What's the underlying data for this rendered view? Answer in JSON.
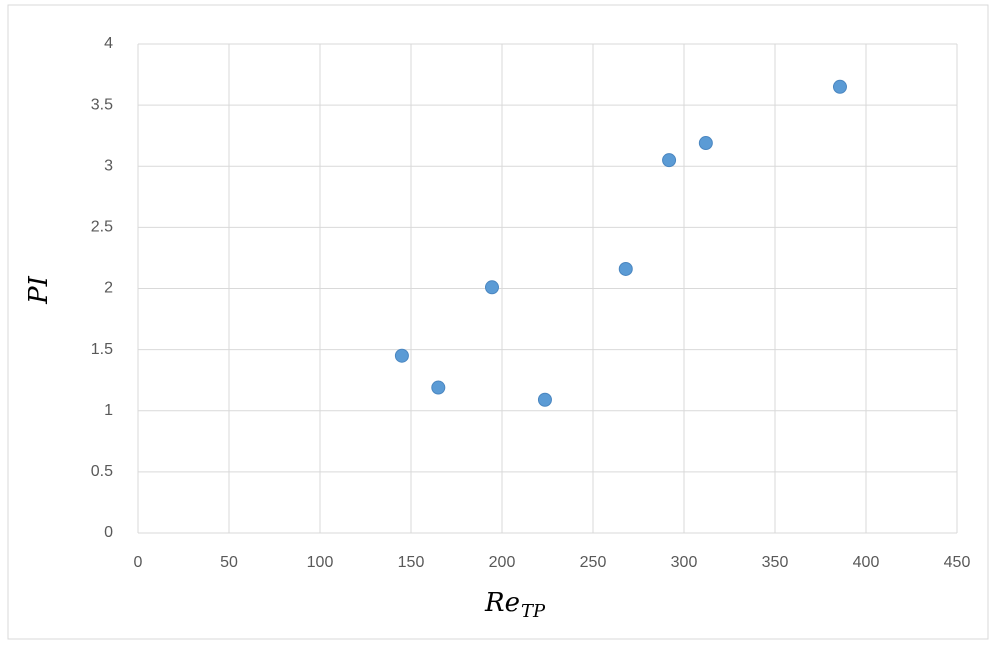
{
  "chart_data": {
    "type": "scatter",
    "x_label": "Re",
    "x_label_sub": "TP",
    "y_label": "PI",
    "x": [
      145,
      165,
      194.5,
      223.6,
      268,
      291.8,
      312,
      385.7
    ],
    "y": [
      1.45,
      1.19,
      2.01,
      1.09,
      2.16,
      3.05,
      3.19,
      3.65
    ],
    "color": "#5b9bd5",
    "xlim": [
      0,
      450
    ],
    "xticks": [
      0,
      50,
      100,
      150,
      200,
      250,
      300,
      350,
      400,
      450
    ],
    "ylim": [
      0,
      4
    ],
    "yticks": [
      0,
      0.5,
      1,
      1.5,
      2,
      2.5,
      3,
      3.5,
      4
    ],
    "grid": true
  }
}
